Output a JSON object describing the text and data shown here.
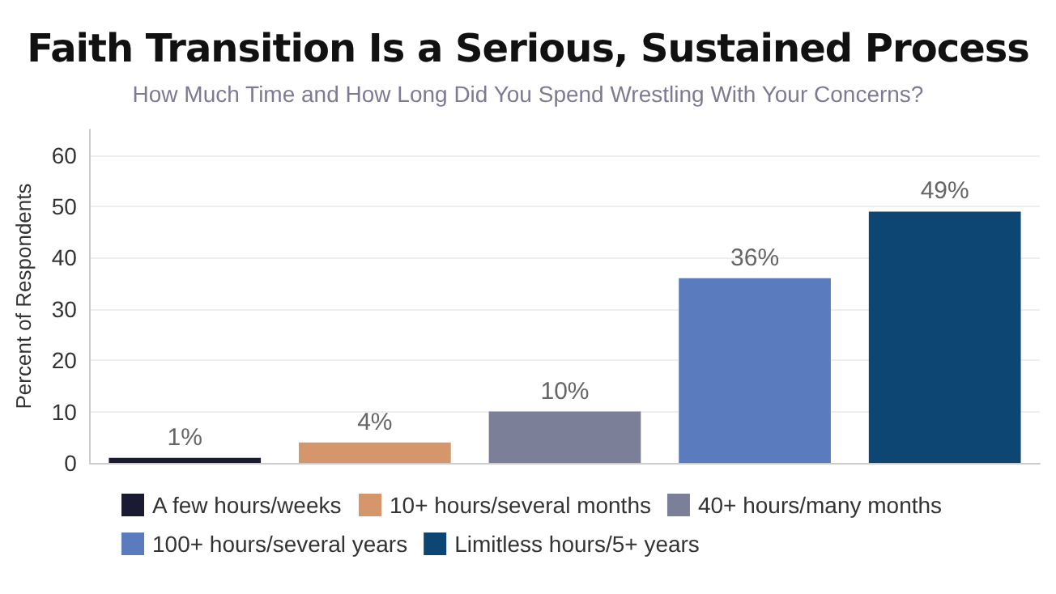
{
  "chart_data": {
    "type": "bar",
    "title": "Faith Transition Is a Serious, Sustained Process",
    "subtitle": "How Much Time and How Long Did You Spend Wrestling With Your Concerns?",
    "ylabel": "Percent of Respondents",
    "categories": [
      null,
      null,
      null,
      null,
      null
    ],
    "series": [
      {
        "name": "A few hours/weeks",
        "color": "#1b1a33",
        "values": [
          1,
          null,
          null,
          null,
          null
        ],
        "value_labels": [
          "1%",
          null,
          null,
          null,
          null
        ]
      },
      {
        "name": "10+ hours/several months",
        "color": "#d4966a",
        "values": [
          null,
          4,
          null,
          null,
          null
        ],
        "value_labels": [
          null,
          "4%",
          null,
          null,
          null
        ]
      },
      {
        "name": "40+ hours/many months",
        "color": "#7b8098",
        "values": [
          null,
          null,
          10,
          null,
          null
        ],
        "value_labels": [
          null,
          null,
          "10%",
          null,
          null
        ]
      },
      {
        "name": "100+ hours/several years",
        "color": "#5a7cbe",
        "values": [
          null,
          null,
          null,
          36,
          null
        ],
        "value_labels": [
          null,
          null,
          null,
          "36%",
          null
        ]
      },
      {
        "name": "Limitless hours/5+ years",
        "color": "#0e4673",
        "values": [
          null,
          null,
          null,
          null,
          49
        ],
        "value_labels": [
          null,
          null,
          null,
          null,
          "49%"
        ]
      }
    ],
    "ylim": [
      0,
      65
    ],
    "yticks": [
      0,
      10,
      20,
      30,
      40,
      50,
      60
    ],
    "grid": "y",
    "legend": "bottom"
  }
}
